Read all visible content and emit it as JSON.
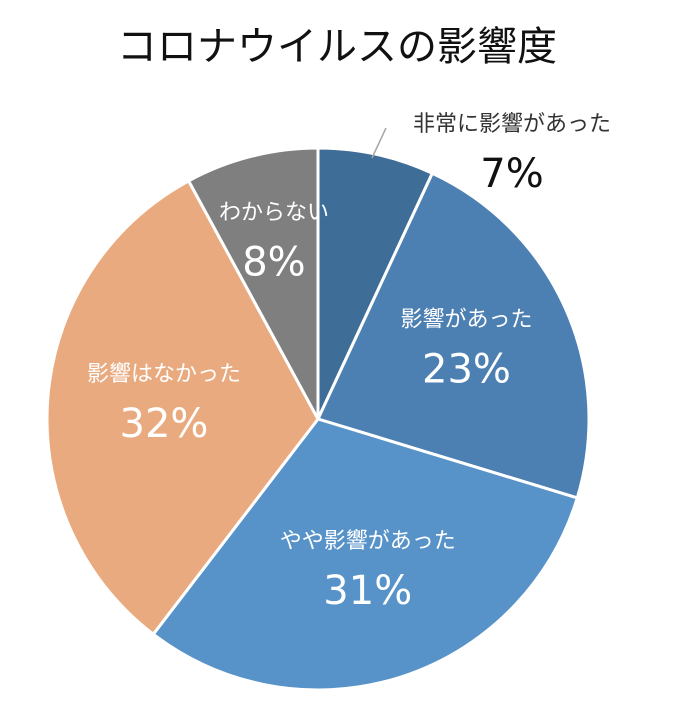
{
  "chart_data": {
    "type": "pie",
    "title": "コロナウイルスの影響度",
    "slices": [
      {
        "label": "非常に影響があった",
        "value": 7,
        "value_label": "7%",
        "color": "#3e6e98"
      },
      {
        "label": "影響があった",
        "value": 23,
        "value_label": "23%",
        "color": "#4c7fb2"
      },
      {
        "label": "やや影響があった",
        "value": 31,
        "value_label": "31%",
        "color": "#5793c9"
      },
      {
        "label": "影響はなかった",
        "value": 32,
        "value_label": "32%",
        "color": "#e9aa7f"
      },
      {
        "label": "わからない",
        "value": 8,
        "value_label": "8%",
        "color": "#7f7f7f"
      }
    ],
    "start_angle_deg": 0,
    "direction": "clockwise",
    "legend": "none"
  }
}
